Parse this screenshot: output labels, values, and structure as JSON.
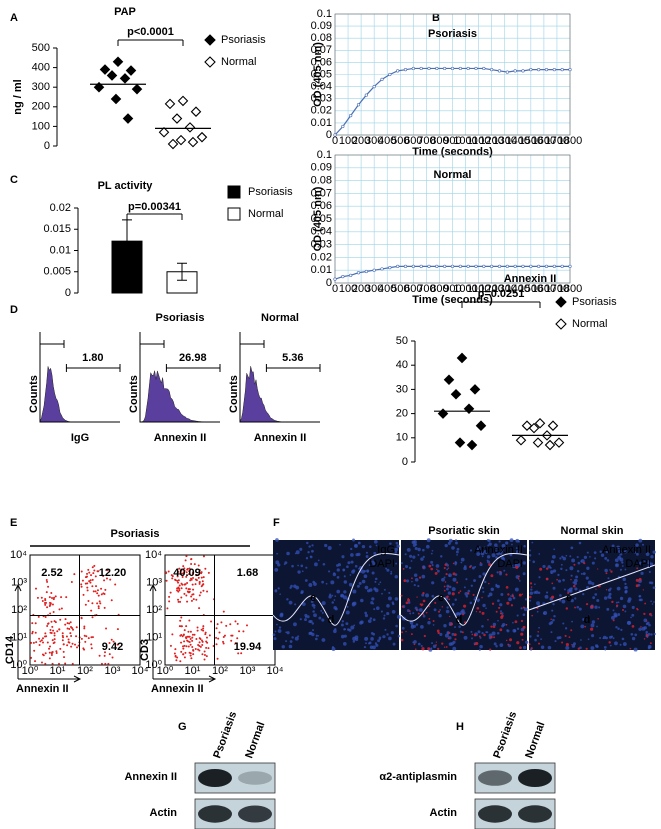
{
  "chart_data": [
    {
      "type": "dot",
      "panel": "A",
      "title": "PAP",
      "ylabel": "ng / ml",
      "annotation": "p<0.0001",
      "ylim": [
        0,
        500
      ],
      "yticks": [
        0,
        100,
        200,
        300,
        400,
        500
      ],
      "series": [
        {
          "name": "Psoriasis",
          "color": "#000000",
          "fill": true,
          "values": [
            430,
            390,
            385,
            360,
            345,
            300,
            290,
            240,
            140
          ],
          "mean": 315
        },
        {
          "name": "Normal",
          "color": "#000000",
          "fill": false,
          "values": [
            230,
            215,
            175,
            140,
            95,
            70,
            45,
            30,
            20,
            10
          ],
          "mean": 90
        }
      ]
    },
    {
      "type": "line",
      "panel": "B",
      "title": "Psoriasis",
      "ylabel": "OD (405 nm)",
      "xlabel": "Time (seconds)",
      "grid": true,
      "xlim": [
        0,
        1800
      ],
      "xticks": [
        0,
        100,
        200,
        300,
        400,
        500,
        600,
        700,
        800,
        900,
        1000,
        1100,
        1200,
        1300,
        1400,
        1500,
        1600,
        1700,
        1800
      ],
      "ylim": [
        0,
        0.1
      ],
      "yticks": [
        0,
        0.01,
        0.02,
        0.03,
        0.04,
        0.05,
        0.06,
        0.07,
        0.08,
        0.09,
        0.1
      ],
      "x": [
        0,
        60,
        120,
        180,
        240,
        300,
        360,
        420,
        480,
        540,
        600,
        660,
        720,
        780,
        840,
        900,
        960,
        1020,
        1080,
        1140,
        1200,
        1260,
        1320,
        1380,
        1440,
        1500,
        1560,
        1620,
        1680,
        1740,
        1800
      ],
      "series": [
        {
          "color": "#4a6fb5",
          "values": [
            0,
            0.007,
            0.016,
            0.025,
            0.033,
            0.04,
            0.046,
            0.05,
            0.053,
            0.054,
            0.055,
            0.055,
            0.055,
            0.055,
            0.055,
            0.055,
            0.055,
            0.055,
            0.055,
            0.055,
            0.054,
            0.053,
            0.052,
            0.053,
            0.053,
            0.054,
            0.054,
            0.054,
            0.054,
            0.054,
            0.054
          ]
        }
      ]
    },
    {
      "type": "line",
      "title": "Normal",
      "ylabel": "OD (405 nm)",
      "xlabel": "Time (seconds)",
      "grid": true,
      "xlim": [
        0,
        1800
      ],
      "xticks": [
        0,
        100,
        200,
        300,
        400,
        500,
        600,
        700,
        800,
        900,
        1000,
        1100,
        1200,
        1300,
        1400,
        1500,
        1600,
        1700,
        1800
      ],
      "ylim": [
        0,
        0.1
      ],
      "yticks": [
        0,
        0.01,
        0.02,
        0.03,
        0.04,
        0.05,
        0.06,
        0.07,
        0.08,
        0.09,
        0.1
      ],
      "x": [
        0,
        60,
        120,
        180,
        240,
        300,
        360,
        420,
        480,
        540,
        600,
        660,
        720,
        780,
        840,
        900,
        960,
        1020,
        1080,
        1140,
        1200,
        1260,
        1320,
        1380,
        1440,
        1500,
        1560,
        1620,
        1680,
        1740,
        1800
      ],
      "series": [
        {
          "color": "#4a6fb5",
          "values": [
            0.003,
            0.005,
            0.006,
            0.008,
            0.009,
            0.01,
            0.011,
            0.012,
            0.013,
            0.013,
            0.013,
            0.013,
            0.013,
            0.013,
            0.013,
            0.013,
            0.013,
            0.013,
            0.013,
            0.013,
            0.013,
            0.013,
            0.013,
            0.013,
            0.013,
            0.013,
            0.013,
            0.013,
            0.013,
            0.013,
            0.013
          ]
        }
      ]
    },
    {
      "type": "bar",
      "panel": "C",
      "title": "PL activity",
      "annotation": "p=0.00341",
      "ylim": [
        0,
        0.02
      ],
      "yticks": [
        0,
        0.005,
        0.01,
        0.015,
        0.02
      ],
      "series": [
        {
          "name": "Psoriasis",
          "color": "#000000",
          "values": [
            0.0122
          ],
          "errors": [
            0.005
          ]
        },
        {
          "name": "Normal",
          "color": "#ffffff",
          "values": [
            0.005
          ],
          "errors": [
            0.002
          ]
        }
      ]
    },
    {
      "type": "flow",
      "panel": "D",
      "ylabel": "Counts",
      "plots": [
        {
          "xlabel": "IgG",
          "gate": {
            "value": 1.8,
            "label": "1.80"
          }
        },
        {
          "title": "Psoriasis",
          "xlabel": "Annexin II",
          "gate": {
            "value": 26.98,
            "label": "26.98"
          }
        },
        {
          "title": "Normal",
          "xlabel": "Annexin II",
          "gate": {
            "value": 5.36,
            "label": "5.36"
          }
        }
      ]
    },
    {
      "type": "dot",
      "title": "Annexin II",
      "annotation": "p=0.0251",
      "ylim": [
        0,
        50
      ],
      "yticks": [
        0,
        10,
        20,
        30,
        40,
        50
      ],
      "series": [
        {
          "name": "Psoriasis",
          "color": "#000000",
          "fill": true,
          "values": [
            43,
            34,
            30,
            28,
            22,
            20,
            15,
            8,
            7
          ],
          "mean": 21
        },
        {
          "name": "Normal",
          "color": "#000000",
          "fill": false,
          "values": [
            16,
            15,
            15,
            14,
            11,
            9,
            8,
            8,
            7
          ],
          "mean": 11
        }
      ]
    },
    {
      "type": "quadrant",
      "panel": "E",
      "title": "Psoriasis",
      "log": true,
      "ticks": [
        {
          "value": 1,
          "label": "10⁰"
        },
        {
          "value": 10,
          "label": "10¹"
        },
        {
          "value": 100,
          "label": "10²"
        },
        {
          "value": 1000,
          "label": "10³"
        },
        {
          "value": 10000,
          "label": "10⁴"
        }
      ],
      "plots": [
        {
          "ylabel": "CD14",
          "xlabel": "Annexin II",
          "quadrants": [
            2.52,
            12.2,
            9.42
          ],
          "value_labels": [
            "2.52",
            "12.20",
            "9.42"
          ]
        },
        {
          "ylabel": "CD3",
          "xlabel": "Annexin II",
          "quadrants": [
            40.09,
            1.68,
            19.94
          ]
        }
      ]
    },
    {
      "type": "micrograph",
      "panel": "F",
      "images": [
        {
          "stain": "IgG",
          "counterstain": "DAPI",
          "regions": [
            "e",
            "d"
          ]
        },
        {
          "title": "Psoriatic skin",
          "stain": "Annexin II",
          "counterstain": "DAPI",
          "regions": [
            "e",
            "d"
          ]
        },
        {
          "title": "Normal skin",
          "stain": "Annexin II",
          "counterstain": "DAPI",
          "regions": [
            "e",
            "d"
          ]
        }
      ]
    },
    {
      "type": "blot",
      "panel": "G",
      "lanes": [
        "Psoriasis",
        "Normal"
      ],
      "rows": [
        "Annexin II",
        "Actin"
      ]
    },
    {
      "type": "blot",
      "panel": "H",
      "lanes": [
        "Psoriasis",
        "Normal"
      ],
      "rows": [
        "α2-antiplasmin",
        "Actin"
      ]
    }
  ]
}
